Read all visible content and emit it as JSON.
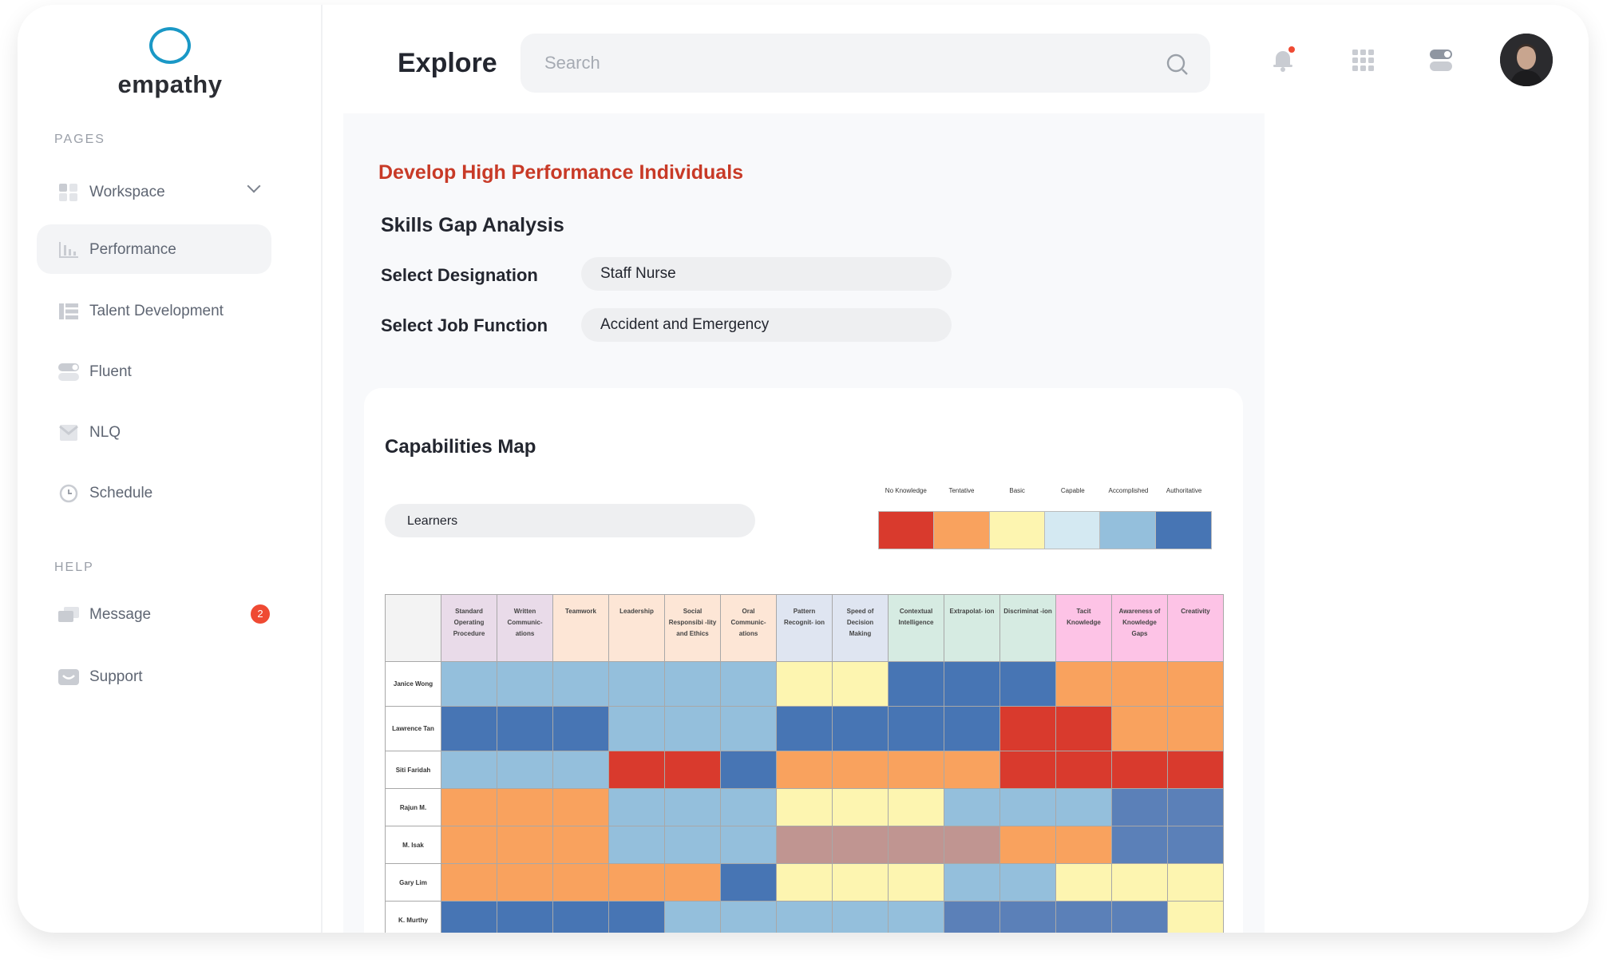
{
  "app": {
    "logo_text": "empathy"
  },
  "sidebar": {
    "pages_label": "PAGES",
    "help_label": "HELP",
    "items": [
      {
        "label": "Workspace",
        "icon": "grid-icon",
        "has_chevron": true
      },
      {
        "label": "Performance",
        "icon": "bar-chart-icon",
        "active": true
      },
      {
        "label": "Talent Development",
        "icon": "list-icon"
      },
      {
        "label": "Fluent",
        "icon": "toggle-icon"
      },
      {
        "label": "NLQ",
        "icon": "inbox-icon"
      },
      {
        "label": "Schedule",
        "icon": "clock-icon"
      }
    ],
    "help_items": [
      {
        "label": "Message",
        "icon": "message-icon",
        "badge": "2"
      },
      {
        "label": "Support",
        "icon": "support-icon"
      }
    ]
  },
  "header": {
    "title": "Explore",
    "search_placeholder": "Search",
    "notification_dot_color": "#ef4a33"
  },
  "main": {
    "heading": "Develop High Performance Individuals",
    "subheading": "Skills Gap Analysis",
    "designation_label": "Select Designation",
    "designation_value": "Staff Nurse",
    "job_function_label": "Select Job Function",
    "job_function_value": "Accident and Emergency"
  },
  "capabilities": {
    "title": "Capabilities Map",
    "learners_select": "Learners",
    "levels": [
      {
        "label": "No Knowledge",
        "color": "#d93a2d"
      },
      {
        "label": "Tentative",
        "color": "#f9a25e"
      },
      {
        "label": "Basic",
        "color": "#fdf5b0"
      },
      {
        "label": "Capable",
        "color": "#d4e9f2"
      },
      {
        "label": "Accomplished",
        "color": "#94bfdc"
      },
      {
        "label": "Authoritative",
        "color": "#4775b4"
      }
    ],
    "columns": [
      {
        "label": "Standard Operating Procedure",
        "bg": "#e9dbe9"
      },
      {
        "label": "Written Communic- ations",
        "bg": "#e9dbe9"
      },
      {
        "label": "Teamwork",
        "bg": "#fde6d6"
      },
      {
        "label": "Leadership",
        "bg": "#fde6d6"
      },
      {
        "label": "Social Responsibi -lity and Ethics",
        "bg": "#fde6d6"
      },
      {
        "label": "Oral Communic- ations",
        "bg": "#fde6d6"
      },
      {
        "label": "Pattern Recognit- ion",
        "bg": "#dfe5f1"
      },
      {
        "label": "Speed of Decision Making",
        "bg": "#dfe5f1"
      },
      {
        "label": "Contextual Intelligence",
        "bg": "#d6ebe2"
      },
      {
        "label": "Extrapolat- ion",
        "bg": "#d6ebe2"
      },
      {
        "label": "Discriminat -ion",
        "bg": "#d6ebe2"
      },
      {
        "label": "Tacit Knowledge",
        "bg": "#fdc3e6"
      },
      {
        "label": "Awareness of Knowledge Gaps",
        "bg": "#fdc3e6"
      },
      {
        "label": "Creativity",
        "bg": "#fdc3e6"
      }
    ],
    "rows": [
      {
        "name": "Janice Wong",
        "cells": [
          "#94bfdc",
          "#94bfdc",
          "#94bfdc",
          "#94bfdc",
          "#94bfdc",
          "#94bfdc",
          "#fdf5b0",
          "#fdf5b0",
          "#4775b4",
          "#4775b4",
          "#4775b4",
          "#f9a25e",
          "#f9a25e",
          "#f9a25e"
        ]
      },
      {
        "name": "Lawrence Tan",
        "cells": [
          "#4775b4",
          "#4775b4",
          "#4775b4",
          "#94bfdc",
          "#94bfdc",
          "#94bfdc",
          "#4775b4",
          "#4775b4",
          "#4775b4",
          "#4775b4",
          "#d93a2d",
          "#d93a2d",
          "#f9a25e",
          "#f9a25e"
        ]
      },
      {
        "name": "Siti Faridah",
        "cells": [
          "#94bfdc",
          "#94bfdc",
          "#94bfdc",
          "#d93a2d",
          "#d93a2d",
          "#4775b4",
          "#f9a25e",
          "#f9a25e",
          "#f9a25e",
          "#f9a25e",
          "#d93a2d",
          "#d93a2d",
          "#d93a2d",
          "#d93a2d"
        ]
      },
      {
        "name": "Rajun M.",
        "cells": [
          "#f9a25e",
          "#f9a25e",
          "#f9a25e",
          "#94bfdc",
          "#94bfdc",
          "#94bfdc",
          "#fdf5b0",
          "#fdf5b0",
          "#fdf5b0",
          "#94bfdc",
          "#94bfdc",
          "#94bfdc",
          "#5b80b8",
          "#5b80b8"
        ]
      },
      {
        "name": "M. Isak",
        "cells": [
          "#f9a25e",
          "#f9a25e",
          "#f9a25e",
          "#94bfdc",
          "#94bfdc",
          "#94bfdc",
          "#c09591",
          "#c09591",
          "#c09591",
          "#c09591",
          "#f9a25e",
          "#f9a25e",
          "#5b80b8",
          "#5b80b8"
        ]
      },
      {
        "name": "Gary Lim",
        "cells": [
          "#f9a25e",
          "#f9a25e",
          "#f9a25e",
          "#f9a25e",
          "#f9a25e",
          "#4775b4",
          "#fdf5b0",
          "#fdf5b0",
          "#fdf5b0",
          "#94bfdc",
          "#94bfdc",
          "#fdf5b0",
          "#fdf5b0",
          "#fdf5b0"
        ]
      },
      {
        "name": "K. Murthy",
        "cells": [
          "#4775b4",
          "#4775b4",
          "#4775b4",
          "#4775b4",
          "#94bfdc",
          "#94bfdc",
          "#94bfdc",
          "#94bfdc",
          "#94bfdc",
          "#5b80b8",
          "#5b80b8",
          "#5b80b8",
          "#5b80b8",
          "#fdf5b0"
        ]
      }
    ]
  }
}
